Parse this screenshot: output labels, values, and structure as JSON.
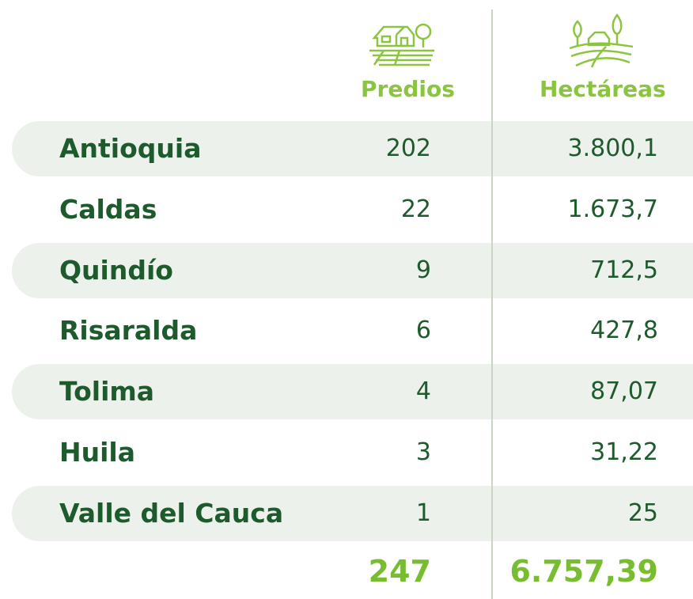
{
  "table": {
    "headers": [
      "Predios",
      "Hectáreas"
    ],
    "rows": [
      [
        "Antioquia",
        "202",
        "3.800,1"
      ],
      [
        "Caldas",
        "22",
        "1.673,7"
      ],
      [
        "Quindío",
        "9",
        "712,5"
      ],
      [
        "Risaralda",
        "6",
        "427,8"
      ],
      [
        "Tolima",
        "4",
        "87,07"
      ],
      [
        "Huila",
        "3",
        "31,22"
      ],
      [
        "Valle del Cauca",
        "1",
        "25"
      ]
    ],
    "totals": [
      "247",
      "6.757,39"
    ]
  }
}
